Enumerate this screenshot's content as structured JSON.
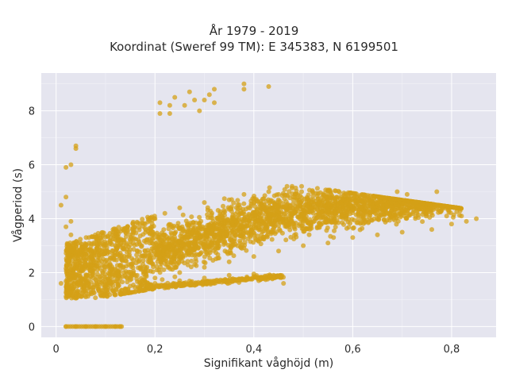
{
  "chart_data": {
    "type": "scatter",
    "title": [
      "År 1979 - 2019",
      "Koordinat (Sweref 99 TM): E 345383, N 6199501"
    ],
    "xlabel": "Signifikant våghöjd (m)",
    "ylabel": "Vågperiod (s)",
    "xlim": [
      -0.03,
      0.89
    ],
    "ylim": [
      -0.4,
      9.4
    ],
    "xticks": [
      0,
      0.2,
      0.4,
      0.6,
      0.8
    ],
    "xtick_labels": [
      "0",
      "0,2",
      "0,4",
      "0,6",
      "0,8"
    ],
    "yticks": [
      0,
      2,
      4,
      6,
      8
    ],
    "ytick_labels": [
      "0",
      "2",
      "4",
      "6",
      "8"
    ],
    "grid": true,
    "marker_color": "#D4A017",
    "background_color": "#E5E5EF",
    "points_sample": [
      [
        0.02,
        0.0
      ],
      [
        0.04,
        0.0
      ],
      [
        0.06,
        0.0
      ],
      [
        0.08,
        0.0
      ],
      [
        0.1,
        0.0
      ],
      [
        0.12,
        0.0
      ],
      [
        0.13,
        0.0
      ],
      [
        0.01,
        1.6
      ],
      [
        0.01,
        4.5
      ],
      [
        0.02,
        5.9
      ],
      [
        0.02,
        4.8
      ],
      [
        0.03,
        6.0
      ],
      [
        0.04,
        6.6
      ],
      [
        0.04,
        6.7
      ],
      [
        0.03,
        3.9
      ],
      [
        0.02,
        3.7
      ],
      [
        0.03,
        3.4
      ],
      [
        0.05,
        2.8
      ],
      [
        0.07,
        2.6
      ],
      [
        0.1,
        2.8
      ],
      [
        0.12,
        3.0
      ],
      [
        0.15,
        3.4
      ],
      [
        0.18,
        3.8
      ],
      [
        0.2,
        4.0
      ],
      [
        0.22,
        4.2
      ],
      [
        0.25,
        4.4
      ],
      [
        0.3,
        4.6
      ],
      [
        0.35,
        4.7
      ],
      [
        0.38,
        4.9
      ],
      [
        0.43,
        5.0
      ],
      [
        0.45,
        4.9
      ],
      [
        0.48,
        4.8
      ],
      [
        0.52,
        4.7
      ],
      [
        0.55,
        4.5
      ],
      [
        0.6,
        4.4
      ],
      [
        0.65,
        4.3
      ],
      [
        0.69,
        5.0
      ],
      [
        0.71,
        4.9
      ],
      [
        0.77,
        5.0
      ],
      [
        0.7,
        4.3
      ],
      [
        0.75,
        4.2
      ],
      [
        0.79,
        4.1
      ],
      [
        0.82,
        4.1
      ],
      [
        0.85,
        4.0
      ],
      [
        0.83,
        3.9
      ],
      [
        0.8,
        3.8
      ],
      [
        0.76,
        3.6
      ],
      [
        0.7,
        3.5
      ],
      [
        0.65,
        3.4
      ],
      [
        0.6,
        3.3
      ],
      [
        0.55,
        3.1
      ],
      [
        0.5,
        3.0
      ],
      [
        0.45,
        2.8
      ],
      [
        0.4,
        2.6
      ],
      [
        0.35,
        2.4
      ],
      [
        0.3,
        2.2
      ],
      [
        0.25,
        2.0
      ],
      [
        0.2,
        1.8
      ],
      [
        0.15,
        1.5
      ],
      [
        0.1,
        1.2
      ],
      [
        0.06,
        1.1
      ],
      [
        0.2,
        1.6
      ],
      [
        0.25,
        1.7
      ],
      [
        0.3,
        1.8
      ],
      [
        0.35,
        1.9
      ],
      [
        0.4,
        1.95
      ],
      [
        0.44,
        1.9
      ],
      [
        0.41,
        1.7
      ],
      [
        0.46,
        1.6
      ],
      [
        0.21,
        7.9
      ],
      [
        0.23,
        7.9
      ],
      [
        0.21,
        8.3
      ],
      [
        0.23,
        8.2
      ],
      [
        0.24,
        8.5
      ],
      [
        0.26,
        8.2
      ],
      [
        0.27,
        8.7
      ],
      [
        0.28,
        8.4
      ],
      [
        0.29,
        8.0
      ],
      [
        0.3,
        8.4
      ],
      [
        0.31,
        8.6
      ],
      [
        0.32,
        8.8
      ],
      [
        0.32,
        8.3
      ],
      [
        0.38,
        9.0
      ],
      [
        0.38,
        8.8
      ],
      [
        0.43,
        8.9
      ]
    ]
  }
}
